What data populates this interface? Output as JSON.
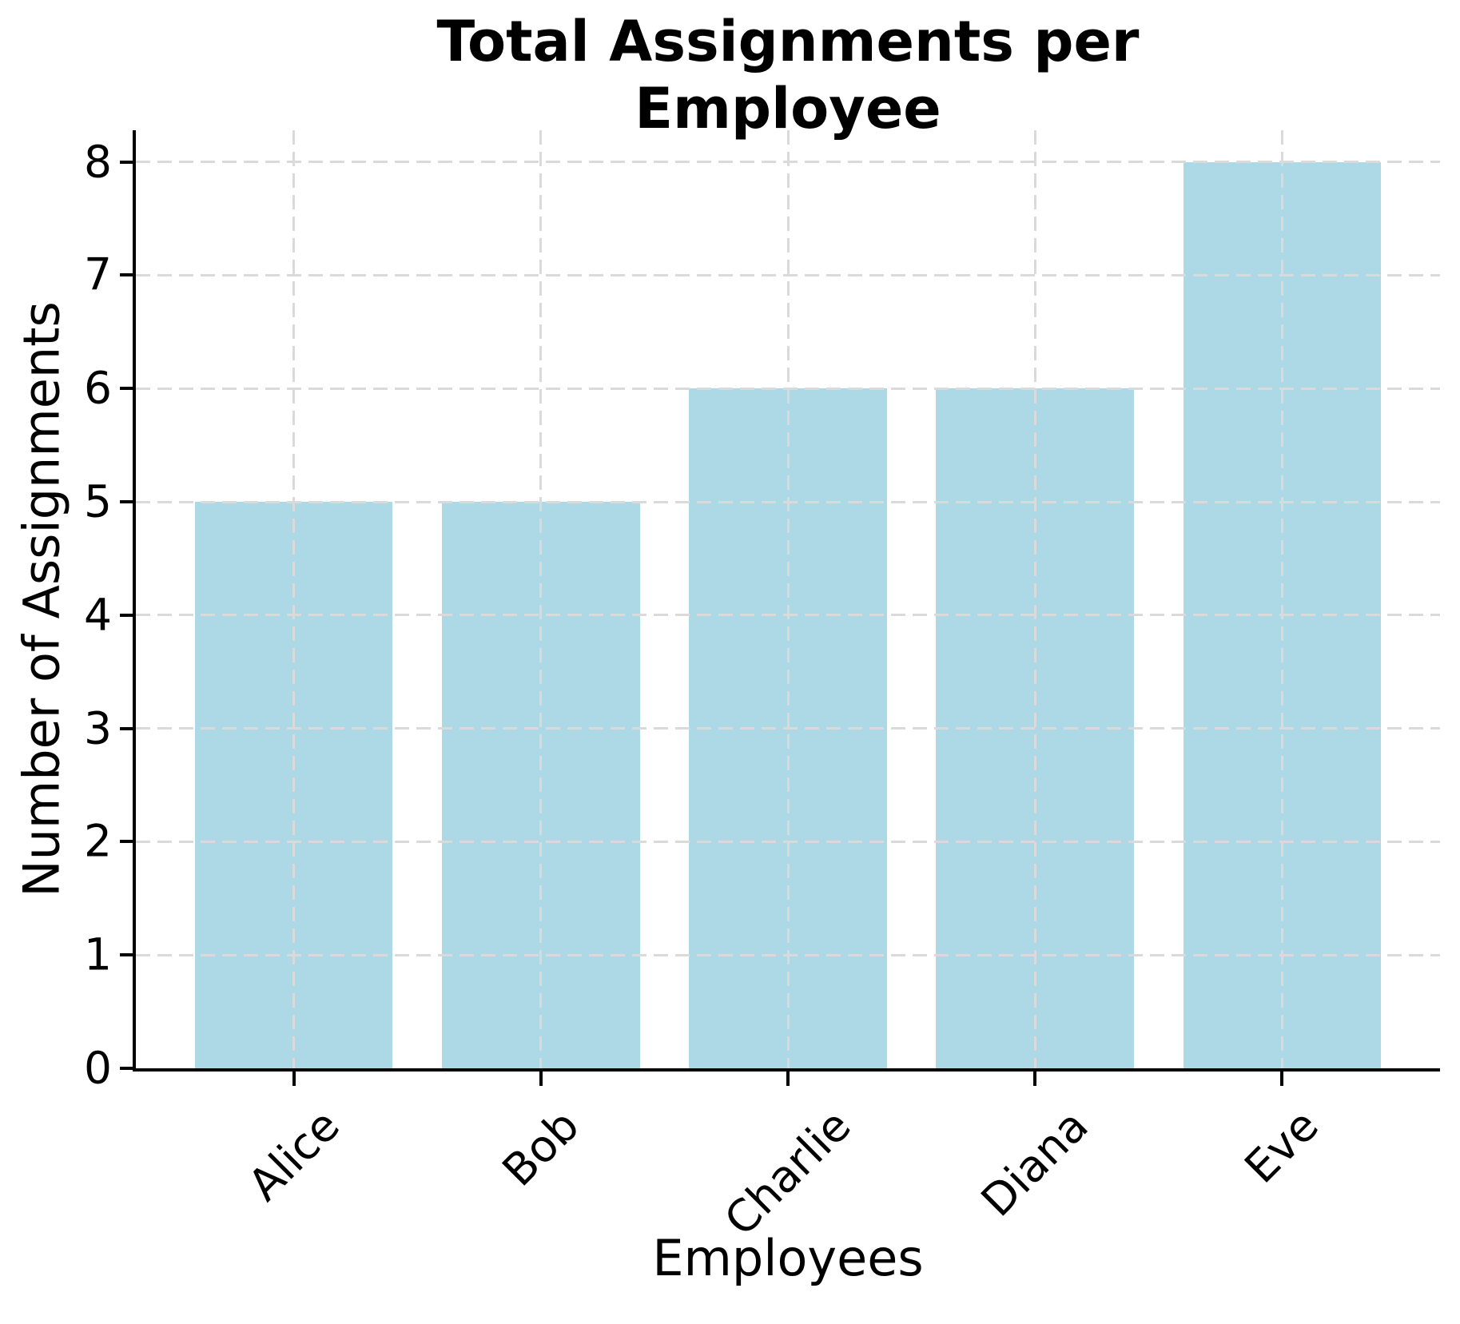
{
  "chart_data": {
    "type": "bar",
    "title": "Total Assignments per Employee",
    "xlabel": "Employees",
    "ylabel": "Number of Assignments",
    "categories": [
      "Alice",
      "Bob",
      "Charlie",
      "Diana",
      "Eve"
    ],
    "values": [
      5,
      5,
      6,
      6,
      8
    ],
    "yticks": [
      0,
      1,
      2,
      3,
      4,
      5,
      6,
      7,
      8
    ],
    "ylim": [
      0,
      8.28
    ],
    "xtick_rotation_deg": 45,
    "bar_color": "#ADD8E6",
    "grid_color": "#DADADA",
    "axis_color": "#000000",
    "grid": "both-dashed",
    "legend_position": "none"
  }
}
